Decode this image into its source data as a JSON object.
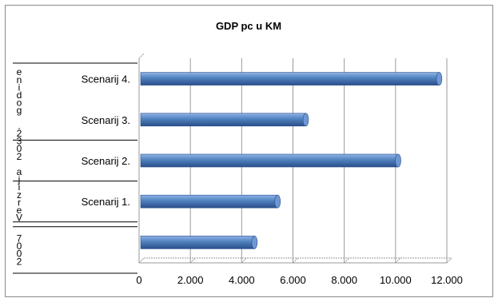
{
  "chart_data": {
    "type": "bar",
    "orientation": "horizontal",
    "title": "GDP pc u KM",
    "categories": [
      "2007",
      "Scenarij  1.",
      "Scenarij 2.",
      "Scenarij 3.",
      "Scenarij 4."
    ],
    "group_labels": [
      "2007",
      "Verzija 2032. godine"
    ],
    "values": [
      4500,
      5400,
      10100,
      6500,
      11700
    ],
    "xlim": [
      0,
      12000
    ],
    "x_ticks": [
      "0",
      "2.000",
      "4.000",
      "6.000",
      "8.000",
      "10.000",
      "12.000"
    ],
    "x_tick_values": [
      0,
      2000,
      4000,
      6000,
      8000,
      10000,
      12000
    ],
    "grid": true,
    "legend": "none",
    "colors": {
      "bar_top": "#8fb3e8",
      "bar_mid": "#4f81bd",
      "bar_bottom": "#2a4f8a",
      "bar_end": "#6f97d4",
      "grid": "#9a9a9a",
      "frame": "#8a8a8a",
      "axis": "#000000"
    }
  }
}
